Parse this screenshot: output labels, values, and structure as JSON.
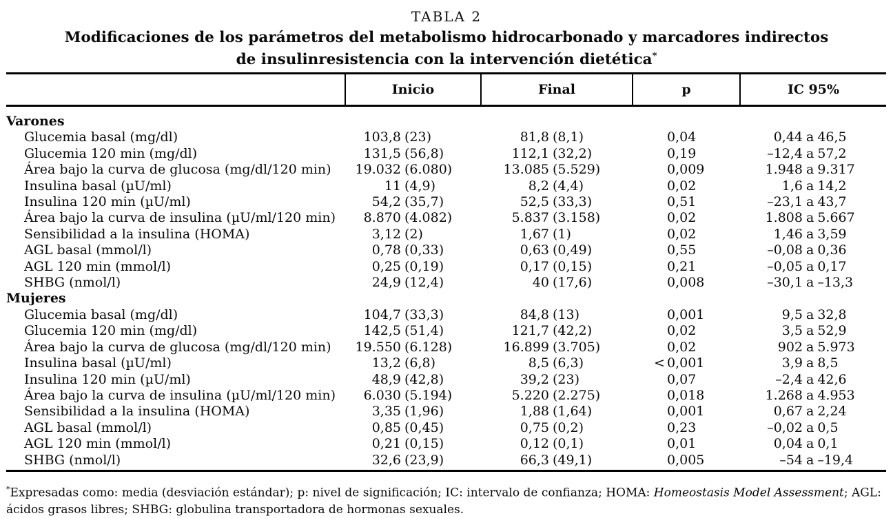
{
  "title": {
    "number": "TABLA 2",
    "line1": "Modificaciones de los parámetros del metabolismo hidrocarbonado y marcadores indirectos",
    "line2": "de insulinresistencia con la intervención dietética",
    "asterisk": "*"
  },
  "table": {
    "columns": [
      "",
      "Inicio",
      "Final",
      "p",
      "IC 95%"
    ],
    "value_format": "media (desviación estándar)",
    "sections": [
      {
        "name": "Varones",
        "rows": [
          {
            "label": "Glucemia basal (mg/dl)",
            "inicio": "103,8 (23)",
            "final": "81,8 (8,1)",
            "p": "0,04",
            "ic95": "0,44 a 46,5"
          },
          {
            "label": "Glucemia 120 min (mg/dl)",
            "inicio": "131,5 (56,8)",
            "final": "112,1 (32,2)",
            "p": "0,19",
            "ic95": "–12,4 a 57,2"
          },
          {
            "label": "Área bajo la curva de glucosa (mg/dl/120 min)",
            "inicio": "19.032 (6.080)",
            "final": "13.085 (5.529)",
            "p": "0,009",
            "ic95": "1.948 a 9.317"
          },
          {
            "label": "Insulina basal (µU/ml)",
            "inicio": "11 (4,9)",
            "final": "8,2 (4,4)",
            "p": "0,02",
            "ic95": "1,6 a 14,2"
          },
          {
            "label": "Insulina 120 min (µU/ml)",
            "inicio": "54,2 (35,7)",
            "final": "52,5 (33,3)",
            "p": "0,51",
            "ic95": "–23,1 a 43,7"
          },
          {
            "label": "Área bajo la curva de insulina (µU/ml/120 min)",
            "inicio": "8.870 (4.082)",
            "final": "5.837 (3.158)",
            "p": "0,02",
            "ic95": "1.808 a 5.667"
          },
          {
            "label": "Sensibilidad a la insulina (HOMA)",
            "inicio": "3,12 (2)",
            "final": "1,67 (1)",
            "p": "0,02",
            "ic95": "1,46 a 3,59"
          },
          {
            "label": "AGL basal (mmol/l)",
            "inicio": "0,78 (0,33)",
            "final": "0,63 (0,49)",
            "p": "0,55",
            "ic95": "–0,08 a 0,36"
          },
          {
            "label": "AGL 120 min (mmol/l)",
            "inicio": "0,25 (0,19)",
            "final": "0,17 (0,15)",
            "p": "0,21",
            "ic95": "–0,05 a 0,17"
          },
          {
            "label": "SHBG (nmol/l)",
            "inicio": "24,9 (12,4)",
            "final": "40 (17,6)",
            "p": "0,008",
            "ic95": "–30,1 a –13,3"
          }
        ]
      },
      {
        "name": "Mujeres",
        "rows": [
          {
            "label": "Glucemia basal (mg/dl)",
            "inicio": "104,7 (33,3)",
            "final": "84,8 (13)",
            "p": "0,001",
            "ic95": "9,5 a 32,8"
          },
          {
            "label": "Glucemia 120 min (mg/dl)",
            "inicio": "142,5 (51,4)",
            "final": "121,7 (42,2)",
            "p": "0,02",
            "ic95": "3,5 a 52,9"
          },
          {
            "label": "Área bajo la curva de glucosa (mg/dl/120 min)",
            "inicio": "19.550 (6.128)",
            "final": "16.899 (3.705)",
            "p": "0,02",
            "ic95": "902 a 5.973"
          },
          {
            "label": "Insulina basal (µU/ml)",
            "inicio": "13,2 (6,8)",
            "final": "8,5 (6,3)",
            "p": "< 0,001",
            "ic95": "3,9 a 8,5"
          },
          {
            "label": "Insulina 120 min (µU/ml)",
            "inicio": "48,9 (42,8)",
            "final": "39,2 (23)",
            "p": "0,07",
            "ic95": "–2,4 a 42,6"
          },
          {
            "label": "Área bajo la curva de insulina (µU/ml/120 min)",
            "inicio": "6.030 (5.194)",
            "final": "5.220 (2.275)",
            "p": "0,018",
            "ic95": "1.268 a 4.953"
          },
          {
            "label": "Sensibilidad a la insulina (HOMA)",
            "inicio": "3,35 (1,96)",
            "final": "1,88 (1,64)",
            "p": "0,001",
            "ic95": "0,67 a 2,24"
          },
          {
            "label": "AGL basal (mmol/l)",
            "inicio": "0,85 (0,45)",
            "final": "0,75 (0,2)",
            "p": "0,23",
            "ic95": "–0,02 a 0,5"
          },
          {
            "label": "AGL 120 min (mmol/l)",
            "inicio": "0,21 (0,15)",
            "final": "0,12 (0,1)",
            "p": "0,01",
            "ic95": "0,04 a 0,1"
          },
          {
            "label": "SHBG (nmol/l)",
            "inicio": "32,6 (23,9)",
            "final": "66,3 (49,1)",
            "p": "0,005",
            "ic95": "–54 a –19,4"
          }
        ]
      }
    ]
  },
  "footnote": {
    "marker": "*",
    "part1": "Expresadas como: media (desviación estándar); p: nivel de significación; IC: intervalo de confianza; HOMA: ",
    "italic": "Homeostasis Model Assessment",
    "part2": "; AGL: ácidos grasos libres; SHBG: globulina transportadora de hormonas sexuales."
  }
}
